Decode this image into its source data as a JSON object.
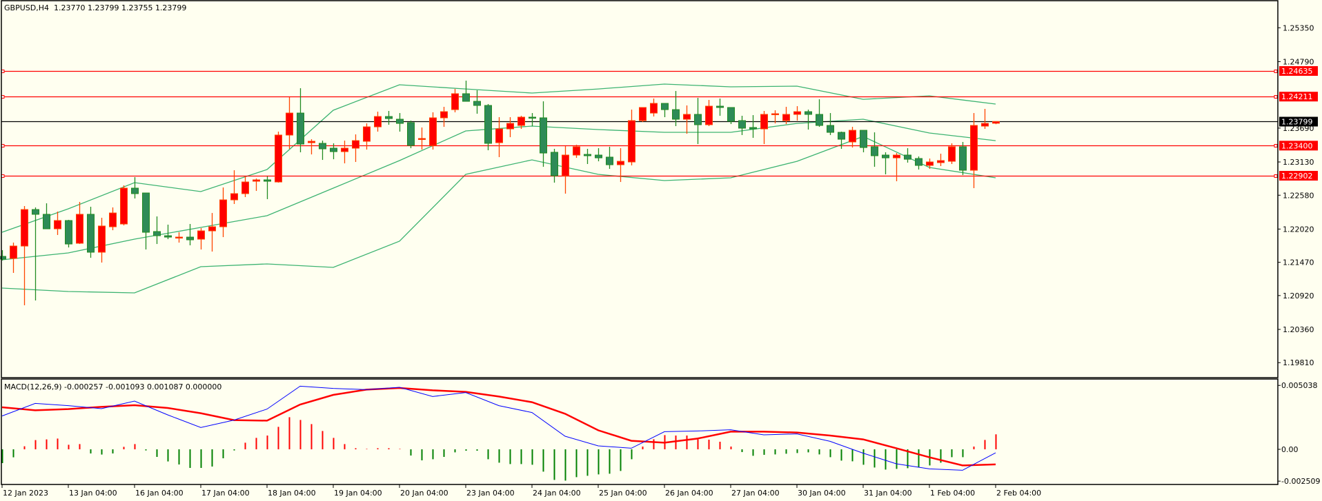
{
  "header": {
    "symbol_timeframe": "GBPUSD,H4",
    "ohlc": "1.23770 1.23799 1.23755 1.23799"
  },
  "macd_header": {
    "label": "MACD(12,26,9)",
    "values": "-0.000257 -0.001093 0.001087 0.000000"
  },
  "colors": {
    "background": "#fffff0",
    "bull_body": "#ff0000",
    "bull_wick": "#ff4500",
    "bear_body": "#2e8b57",
    "bear_wick": "#228b22",
    "bands": "#3cb371",
    "level_line": "#ff0000",
    "bid_line": "#000000",
    "macd_main": "#0000ff",
    "macd_signal": "#ff0000",
    "hist_pos": "#ff0000",
    "hist_neg": "#008000"
  },
  "chart_data": [
    {
      "type": "candlestick",
      "title": "GBPUSD,H4",
      "ylim": [
        1.1945,
        1.2576
      ],
      "price_ticks": [
        "1.25350",
        "1.24790",
        "1.23690",
        "1.23130",
        "1.22580",
        "1.22020",
        "1.21470",
        "1.20920",
        "1.20360",
        "1.19810"
      ],
      "levels": [
        "1.24635",
        "1.24211",
        "1.23400",
        "1.22902"
      ],
      "bid": "1.23799",
      "x_labels": [
        "12 Jan 2023",
        "13 Jan 04:00",
        "16 Jan 04:00",
        "17 Jan 04:00",
        "18 Jan 04:00",
        "19 Jan 04:00",
        "20 Jan 04:00",
        "23 Jan 04:00",
        "24 Jan 04:00",
        "25 Jan 04:00",
        "26 Jan 04:00",
        "27 Jan 04:00",
        "30 Jan 04:00",
        "31 Jan 04:00",
        "1 Feb 04:00",
        "2 Feb 04:00"
      ],
      "ohlc": [
        [
          1.21568,
          1.21671,
          1.215,
          1.21523
        ],
        [
          1.21534,
          1.21796,
          1.21295,
          1.21739
        ],
        [
          1.21739,
          1.22401,
          1.20759,
          1.22343
        ],
        [
          1.22343,
          1.22378,
          1.20839,
          1.22264
        ],
        [
          1.22264,
          1.22446,
          1.22024,
          1.22024
        ],
        [
          1.22024,
          1.22309,
          1.21922,
          1.22161
        ],
        [
          1.22161,
          1.22172,
          1.21716,
          1.21773
        ],
        [
          1.21785,
          1.22469,
          1.21773,
          1.22264
        ],
        [
          1.22264,
          1.22389,
          1.21545,
          1.21637
        ],
        [
          1.21637,
          1.22207,
          1.21466,
          1.2207
        ],
        [
          1.22058,
          1.22378,
          1.22001,
          1.22286
        ],
        [
          1.22104,
          1.22743,
          1.22081,
          1.22697
        ],
        [
          1.22697,
          1.22879,
          1.22526,
          1.22606
        ],
        [
          1.22617,
          1.22617,
          1.21682,
          1.21967
        ],
        [
          1.21979,
          1.22229,
          1.21773,
          1.2191
        ],
        [
          1.2191,
          1.22093,
          1.21853,
          1.21887
        ],
        [
          1.21887,
          1.21967,
          1.21796,
          1.21887
        ],
        [
          1.21887,
          1.22104,
          1.21751,
          1.21842
        ],
        [
          1.21853,
          1.22036,
          1.21682,
          1.2199
        ],
        [
          1.2199,
          1.22286,
          1.21648,
          1.22058
        ],
        [
          1.22058,
          1.22708,
          1.21887,
          1.22503
        ],
        [
          1.22503,
          1.22993,
          1.22435,
          1.22606
        ],
        [
          1.22606,
          1.22891,
          1.22549,
          1.22799
        ],
        [
          1.22811,
          1.22856,
          1.22651,
          1.22834
        ],
        [
          1.22834,
          1.22891,
          1.22515,
          1.22811
        ],
        [
          1.22799,
          1.23632,
          1.22788,
          1.23575
        ],
        [
          1.23575,
          1.24202,
          1.23347,
          1.23939
        ],
        [
          1.23939,
          1.2435,
          1.2329,
          1.23426
        ],
        [
          1.23449,
          1.23506,
          1.23255,
          1.23472
        ],
        [
          1.23438,
          1.23483,
          1.23164,
          1.23347
        ],
        [
          1.23358,
          1.23438,
          1.23175,
          1.23301
        ],
        [
          1.23301,
          1.23483,
          1.23107,
          1.23358
        ],
        [
          1.23358,
          1.23586,
          1.2313,
          1.23483
        ],
        [
          1.23472,
          1.23768,
          1.23335,
          1.23711
        ],
        [
          1.23711,
          1.23962,
          1.23632,
          1.23882
        ],
        [
          1.23882,
          1.23974,
          1.23746,
          1.23848
        ],
        [
          1.23837,
          1.23939,
          1.23632,
          1.23768
        ],
        [
          1.2378,
          1.23814,
          1.23358,
          1.23404
        ],
        [
          1.23518,
          1.237,
          1.23335,
          1.23518
        ],
        [
          1.23404,
          1.23951,
          1.23335,
          1.2386
        ],
        [
          1.2386,
          1.24042,
          1.23711,
          1.23962
        ],
        [
          1.23996,
          1.24338,
          1.23951,
          1.24259
        ],
        [
          1.24259,
          1.24475,
          1.24133,
          1.24133
        ],
        [
          1.24133,
          1.24316,
          1.23928,
          1.24065
        ],
        [
          1.24065,
          1.24088,
          1.23324,
          1.23438
        ],
        [
          1.23449,
          1.23871,
          1.2321,
          1.23677
        ],
        [
          1.23677,
          1.23871,
          1.2354,
          1.23768
        ],
        [
          1.23734,
          1.23894,
          1.23677,
          1.23871
        ],
        [
          1.23871,
          1.23939,
          1.23723,
          1.2386
        ],
        [
          1.2386,
          1.24133,
          1.2305,
          1.23278
        ],
        [
          1.2329,
          1.23347,
          1.22788,
          1.22902
        ],
        [
          1.22902,
          1.23392,
          1.22606,
          1.23244
        ],
        [
          1.23244,
          1.23415,
          1.23198,
          1.23381
        ],
        [
          1.23255,
          1.23347,
          1.23096,
          1.23233
        ],
        [
          1.23244,
          1.23358,
          1.23141,
          1.23198
        ],
        [
          1.2321,
          1.23381,
          1.23016,
          1.23084
        ],
        [
          1.23084,
          1.23358,
          1.22799,
          1.23141
        ],
        [
          1.2313,
          1.23996,
          1.23073,
          1.23814
        ],
        [
          1.23814,
          1.24031,
          1.23791,
          1.24031
        ],
        [
          1.23939,
          1.24179,
          1.23882,
          1.24099
        ],
        [
          1.24099,
          1.24099,
          1.23871,
          1.23996
        ],
        [
          1.23996,
          1.24304,
          1.23723,
          1.23837
        ],
        [
          1.23837,
          1.24065,
          1.23597,
          1.23917
        ],
        [
          1.23917,
          1.2419,
          1.23426,
          1.23746
        ],
        [
          1.23746,
          1.24156,
          1.23723,
          1.24053
        ],
        [
          1.24053,
          1.24179,
          1.23894,
          1.24031
        ],
        [
          1.24031,
          1.24031,
          1.23757,
          1.23803
        ],
        [
          1.23814,
          1.23894,
          1.23575,
          1.23689
        ],
        [
          1.237,
          1.23905,
          1.23529,
          1.23677
        ],
        [
          1.23677,
          1.23974,
          1.23426,
          1.23917
        ],
        [
          1.23917,
          1.23985,
          1.23768,
          1.23928
        ],
        [
          1.23814,
          1.24042,
          1.23757,
          1.23917
        ],
        [
          1.23917,
          1.24053,
          1.23814,
          1.23962
        ],
        [
          1.23962,
          1.23996,
          1.23666,
          1.23917
        ],
        [
          1.23917,
          1.24167,
          1.23711,
          1.23734
        ],
        [
          1.23734,
          1.23939,
          1.23575,
          1.2362
        ],
        [
          1.2362,
          1.23632,
          1.23347,
          1.23506
        ],
        [
          1.23461,
          1.23711,
          1.23369,
          1.23654
        ],
        [
          1.23654,
          1.23654,
          1.2329,
          1.23369
        ],
        [
          1.23381,
          1.2362,
          1.2305,
          1.23233
        ],
        [
          1.23244,
          1.2329,
          1.22925,
          1.23198
        ],
        [
          1.23198,
          1.23278,
          1.22811,
          1.23244
        ],
        [
          1.23244,
          1.23358,
          1.23119,
          1.23175
        ],
        [
          1.23187,
          1.23221,
          1.23005,
          1.23073
        ],
        [
          1.23073,
          1.23187,
          1.23016,
          1.2313
        ],
        [
          1.23119,
          1.23267,
          1.23062,
          1.23153
        ],
        [
          1.23141,
          1.23438,
          1.23096,
          1.23381
        ],
        [
          1.23381,
          1.23461,
          1.22913,
          1.22993
        ],
        [
          1.22993,
          1.23939,
          1.22697,
          1.23734
        ],
        [
          1.23723,
          1.24008,
          1.23677,
          1.23768
        ],
        [
          1.2377,
          1.23799,
          1.23755,
          1.23799
        ]
      ],
      "bollinger_sample_step": 6,
      "bollinger": {
        "upper": [
          1.21967,
          1.22355,
          1.22788,
          1.2264,
          1.23005,
          1.23985,
          1.24407,
          1.24338,
          1.2427,
          1.24338,
          1.24418,
          1.24373,
          1.24384,
          1.24167,
          1.24224,
          1.24088
        ],
        "middle": [
          1.21511,
          1.21625,
          1.21853,
          1.22047,
          1.22241,
          1.22697,
          1.23153,
          1.23643,
          1.23723,
          1.23666,
          1.2362,
          1.2362,
          1.23768,
          1.23837,
          1.23609,
          1.23483
        ],
        "lower": [
          1.21044,
          1.20987,
          1.20964,
          1.21397,
          1.21443,
          1.21386,
          1.21819,
          1.22925,
          1.23164,
          1.22925,
          1.22822,
          1.22868,
          1.23141,
          1.23552,
          1.23039,
          1.22868
        ]
      }
    },
    {
      "type": "macd",
      "title": "MACD(12,26,9)",
      "ylim": [
        -0.002509,
        0.005038
      ],
      "y_ticks": [
        "0.005038",
        "0.00",
        "-0.002509"
      ],
      "histogram": [
        -0.001,
        -0.00058,
        0.00022,
        0.00067,
        0.00072,
        0.00078,
        0.00033,
        0.00038,
        -0.0003,
        -0.00038,
        -0.0003,
        0.00018,
        0.00038,
        -8e-05,
        -0.00055,
        -0.00088,
        -0.0011,
        -0.00135,
        -0.00135,
        -0.00125,
        -0.00065,
        -8e-05,
        0.00048,
        0.00083,
        0.001,
        0.00163,
        0.00233,
        0.00213,
        0.00183,
        0.00133,
        0.00083,
        0.00038,
        8e-05,
        3e-05,
        8e-05,
        8e-05,
        3e-05,
        -0.00045,
        -0.0008,
        -0.00072,
        -0.00055,
        -0.00022,
        -0.0001,
        -0.0001,
        -0.00072,
        -0.00097,
        -0.00107,
        -0.00107,
        -0.00112,
        -0.00162,
        -0.00222,
        -0.00227,
        -0.00202,
        -0.00192,
        -0.00182,
        -0.00177,
        -0.00157,
        -0.00072,
        0.0002,
        0.00073,
        0.00103,
        0.001,
        0.001,
        0.00072,
        0.0007,
        0.00055,
        0.0002,
        -0.0002,
        -0.00047,
        -0.0004,
        -0.00037,
        -0.00032,
        -0.00027,
        -0.00022,
        -0.00037,
        -0.00057,
        -0.00082,
        -0.00087,
        -0.00112,
        -0.00132,
        -0.00147,
        -0.00142,
        -0.00137,
        -0.00132,
        -0.00117,
        -0.00097,
        -0.00057,
        -0.00057,
        0.0002,
        0.00068,
        0.001087
      ],
      "line_sample_step": 3,
      "main": [
        0.00242,
        0.00333,
        0.00317,
        0.00295,
        0.0035,
        0.0025,
        0.00158,
        0.00212,
        0.00292,
        0.00458,
        0.00442,
        0.00433,
        0.0045,
        0.00383,
        0.00412,
        0.00317,
        0.00267,
        0.00095,
        0.00025,
        8e-05,
        0.00128,
        0.00133,
        0.00142,
        0.00105,
        0.00112,
        0.00058,
        -0.00028,
        -0.00105,
        -0.00142,
        -0.00152,
        -0.000257
      ],
      "signal": [
        0.00305,
        0.00283,
        0.00292,
        0.00308,
        0.0032,
        0.003,
        0.00262,
        0.00212,
        0.00208,
        0.00325,
        0.00395,
        0.00433,
        0.00445,
        0.00428,
        0.00417,
        0.00383,
        0.00342,
        0.00258,
        0.00138,
        0.00062,
        0.00048,
        0.00078,
        0.00128,
        0.00128,
        0.00122,
        0.001,
        0.00072,
        8e-05,
        -0.00058,
        -0.00117,
        -0.001093
      ]
    }
  ]
}
